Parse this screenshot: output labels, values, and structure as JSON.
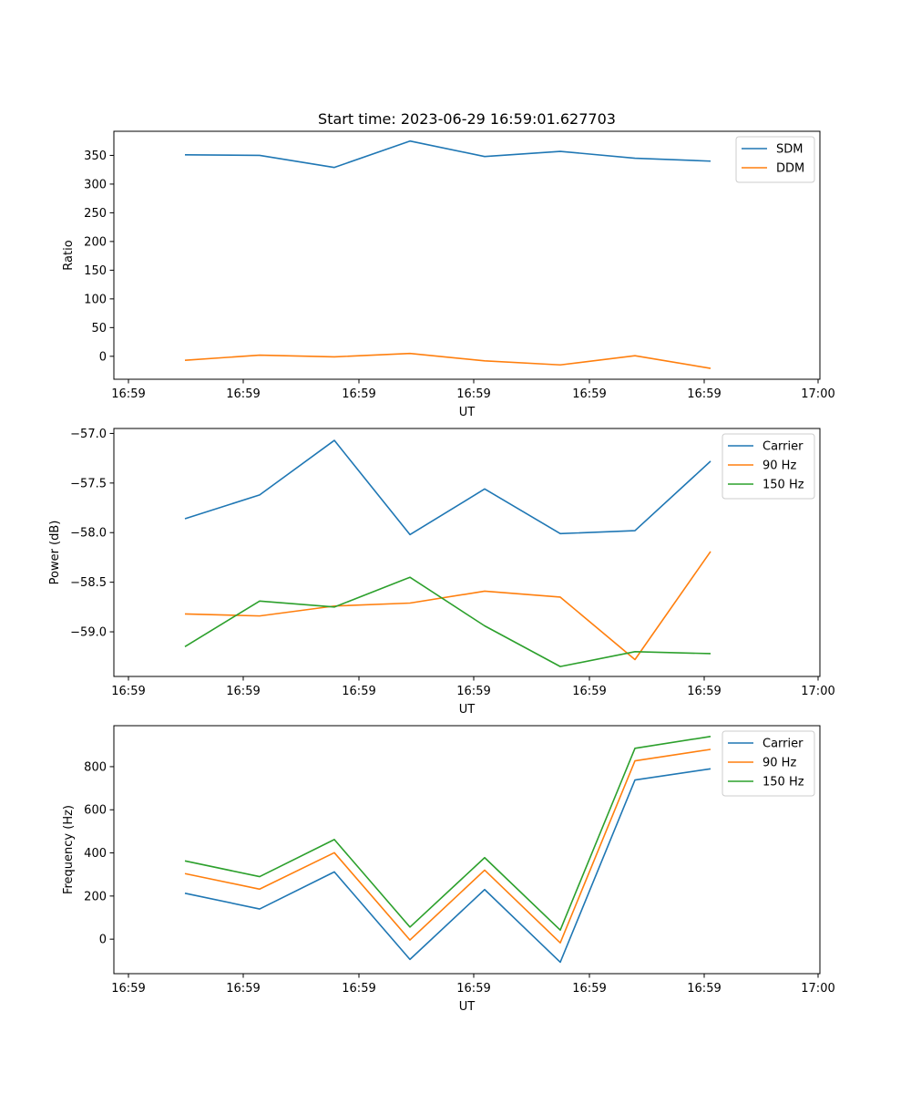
{
  "figure_title": "Start time: 2023-06-29 16:59:01.627703",
  "chart_data": [
    {
      "type": "line",
      "title": "Start time: 2023-06-29 16:59:01.627703",
      "xlabel": "UT",
      "ylabel": "Ratio",
      "x_tick_labels": [
        "16:59",
        "16:59",
        "16:59",
        "16:59",
        "16:59",
        "16:59",
        "17:00"
      ],
      "y_ticks": [
        0,
        50,
        100,
        150,
        200,
        250,
        300,
        350
      ],
      "ylim": [
        -40,
        392
      ],
      "grid": false,
      "legend": "upper right",
      "series": [
        {
          "name": "SDM",
          "color": "#1f77b4",
          "values": [
            351,
            350,
            329,
            375,
            348,
            357,
            345,
            340
          ]
        },
        {
          "name": "DDM",
          "color": "#ff7f0e",
          "values": [
            -7,
            2,
            -1,
            5,
            -8,
            -15,
            1,
            -21
          ]
        }
      ]
    },
    {
      "type": "line",
      "title": "",
      "xlabel": "UT",
      "ylabel": "Power (dB)",
      "x_tick_labels": [
        "16:59",
        "16:59",
        "16:59",
        "16:59",
        "16:59",
        "16:59",
        "17:00"
      ],
      "y_ticks": [
        -57.0,
        -57.5,
        -58.0,
        -58.5,
        -59.0
      ],
      "y_tick_labels": [
        "−57.0",
        "−57.5",
        "−58.0",
        "−58.5",
        "−59.0"
      ],
      "ylim": [
        -59.45,
        -56.95
      ],
      "grid": false,
      "legend": "upper right",
      "series": [
        {
          "name": "Carrier",
          "color": "#1f77b4",
          "values": [
            -57.86,
            -57.62,
            -57.07,
            -58.02,
            -57.56,
            -58.01,
            -57.98,
            -57.28
          ]
        },
        {
          "name": "90 Hz",
          "color": "#ff7f0e",
          "values": [
            -58.82,
            -58.84,
            -58.74,
            -58.71,
            -58.59,
            -58.65,
            -59.28,
            -58.19
          ]
        },
        {
          "name": "150 Hz",
          "color": "#2ca02c",
          "values": [
            -59.15,
            -58.69,
            -58.75,
            -58.45,
            -58.94,
            -59.35,
            -59.2,
            -59.22
          ]
        }
      ]
    },
    {
      "type": "line",
      "title": "",
      "xlabel": "UT",
      "ylabel": "Frequency (Hz)",
      "x_tick_labels": [
        "16:59",
        "16:59",
        "16:59",
        "16:59",
        "16:59",
        "16:59",
        "17:00"
      ],
      "y_ticks": [
        0,
        200,
        400,
        600,
        800
      ],
      "ylim": [
        -160,
        990
      ],
      "grid": false,
      "legend": "upper right",
      "series": [
        {
          "name": "Carrier",
          "color": "#1f77b4",
          "values": [
            213,
            140,
            312,
            -94,
            230,
            -107,
            738,
            790
          ]
        },
        {
          "name": "90 Hz",
          "color": "#ff7f0e",
          "values": [
            304,
            232,
            401,
            -4,
            320,
            -17,
            827,
            880
          ]
        },
        {
          "name": "150 Hz",
          "color": "#2ca02c",
          "values": [
            363,
            290,
            462,
            56,
            378,
            42,
            885,
            940
          ]
        }
      ]
    }
  ]
}
